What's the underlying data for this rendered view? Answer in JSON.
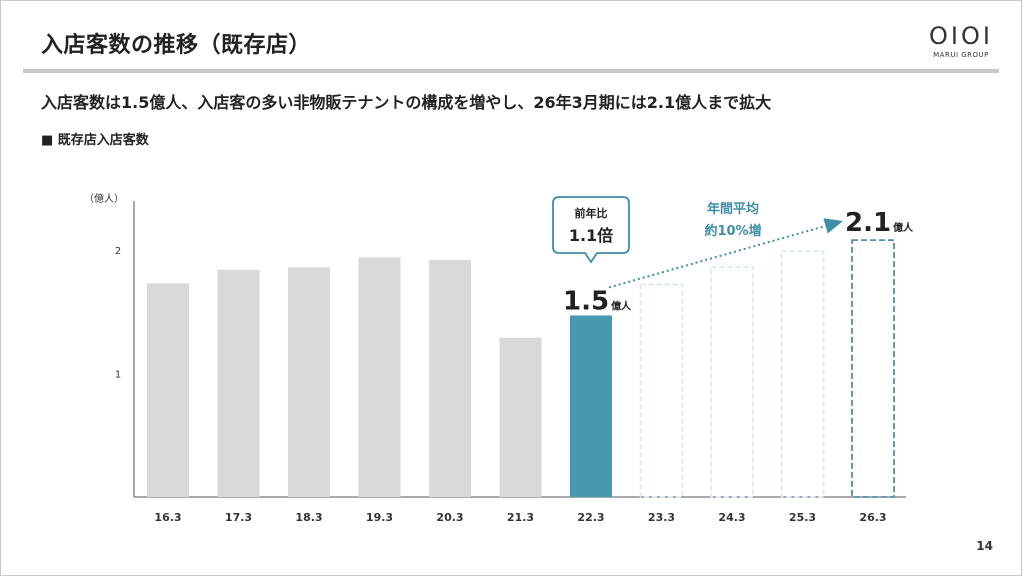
{
  "slide": {
    "title": "入店客数の推移（既存店）",
    "subtitle": "入店客数は1.5億人、入店客の多い非物販テナントの構成を増やし、26年3月期には2.1億人まで拡大",
    "section_label": "■ 既存店入店客数",
    "page_number": "14",
    "logo": {
      "mark": "OIOI",
      "text": "MARUI GROUP"
    }
  },
  "colors": {
    "actual_bar": "#d9d9d9",
    "current_bar": "#4699b1",
    "forecast_outline_light": "#d6e7ee",
    "forecast_outline_dark": "#4f8fa8",
    "accent": "#3f8ea7",
    "axis": "#555555"
  },
  "chart_data": {
    "type": "bar",
    "title": "既存店入店客数",
    "y_unit_label": "（億人）",
    "ylim": [
      0,
      2.2
    ],
    "yticks": [
      1,
      2
    ],
    "categories": [
      "16.3",
      "17.3",
      "18.3",
      "19.3",
      "20.3",
      "21.3",
      "22.3",
      "23.3",
      "24.3",
      "25.3",
      "26.3"
    ],
    "values": [
      1.73,
      1.84,
      1.86,
      1.94,
      1.92,
      1.29,
      1.47,
      1.72,
      1.86,
      1.99,
      2.08
    ],
    "bar_kinds": [
      "actual",
      "actual",
      "actual",
      "actual",
      "actual",
      "actual",
      "current",
      "forecast",
      "forecast",
      "forecast",
      "target"
    ],
    "annotations": {
      "current_value": {
        "value": "1.5",
        "unit": "億人"
      },
      "target_value": {
        "value": "2.1",
        "unit": "億人"
      },
      "yoy_callout": {
        "line1": "前年比",
        "line2": "1.1倍"
      },
      "growth_note": {
        "line1": "年間平均",
        "line2": "約10%増"
      }
    }
  }
}
